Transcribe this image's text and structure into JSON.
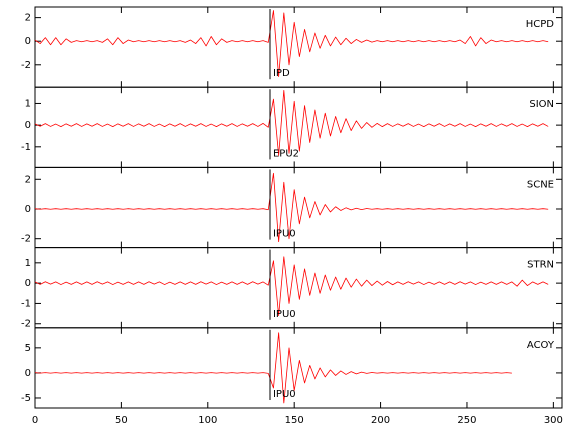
{
  "chart_data": [
    {
      "type": "line",
      "title": "HCPD",
      "pick_label": "IPD",
      "pick_x": 136,
      "color": "#ff0000",
      "ylim": [
        -3.9,
        2.9
      ],
      "yticks": [
        -2,
        0,
        2
      ],
      "x": [
        0,
        3,
        6,
        9,
        12,
        15,
        18,
        21,
        24,
        27,
        30,
        33,
        36,
        39,
        42,
        45,
        48,
        51,
        54,
        57,
        60,
        63,
        66,
        69,
        72,
        75,
        78,
        81,
        84,
        87,
        90,
        93,
        96,
        99,
        102,
        105,
        108,
        111,
        114,
        117,
        120,
        123,
        126,
        129,
        132,
        135,
        138,
        141,
        144,
        147,
        150,
        153,
        156,
        159,
        162,
        165,
        168,
        171,
        174,
        177,
        180,
        183,
        186,
        189,
        192,
        195,
        198,
        201,
        204,
        207,
        210,
        213,
        216,
        219,
        222,
        225,
        228,
        231,
        234,
        237,
        240,
        243,
        246,
        249,
        252,
        255,
        258,
        261,
        264,
        267,
        270,
        273,
        276,
        279,
        282,
        285,
        288,
        291,
        294,
        297
      ],
      "values": [
        0.1,
        -0.2,
        0.3,
        -0.3,
        0.3,
        -0.3,
        0.2,
        -0.1,
        0.05,
        -0.05,
        0.05,
        -0.05,
        0.05,
        -0.1,
        0.2,
        -0.3,
        0.3,
        -0.2,
        0.1,
        -0.05,
        0.05,
        -0.05,
        0.05,
        -0.05,
        0.05,
        -0.05,
        0.05,
        -0.05,
        0.05,
        -0.1,
        0.1,
        -0.2,
        0.3,
        -0.4,
        0.4,
        -0.3,
        0.2,
        -0.1,
        0.05,
        -0.05,
        0.05,
        -0.05,
        0.05,
        -0.05,
        0.05,
        -0.1,
        2.6,
        -3.0,
        2.4,
        -2.0,
        1.6,
        -1.3,
        1.0,
        -0.9,
        0.7,
        -0.6,
        0.5,
        -0.4,
        0.35,
        -0.3,
        0.25,
        -0.2,
        0.15,
        -0.1,
        0.1,
        -0.08,
        0.05,
        -0.05,
        0.05,
        -0.05,
        0.05,
        -0.05,
        0.05,
        -0.05,
        0.05,
        -0.05,
        0.05,
        -0.05,
        0.05,
        -0.05,
        0.05,
        -0.05,
        0.1,
        -0.2,
        0.4,
        -0.4,
        0.3,
        -0.2,
        0.1,
        -0.05,
        0.05,
        -0.05,
        0.05,
        -0.05,
        0.05,
        -0.05,
        0.05,
        -0.05,
        0.05,
        -0.05
      ]
    },
    {
      "type": "line",
      "title": "SION",
      "pick_label": "EPU2",
      "pick_x": 136,
      "color": "#ff0000",
      "ylim": [
        -1.95,
        1.75
      ],
      "yticks": [
        -1,
        0,
        1
      ],
      "x": [
        0,
        3,
        6,
        9,
        12,
        15,
        18,
        21,
        24,
        27,
        30,
        33,
        36,
        39,
        42,
        45,
        48,
        51,
        54,
        57,
        60,
        63,
        66,
        69,
        72,
        75,
        78,
        81,
        84,
        87,
        90,
        93,
        96,
        99,
        102,
        105,
        108,
        111,
        114,
        117,
        120,
        123,
        126,
        129,
        132,
        135,
        138,
        141,
        144,
        147,
        150,
        153,
        156,
        159,
        162,
        165,
        168,
        171,
        174,
        177,
        180,
        183,
        186,
        189,
        192,
        195,
        198,
        201,
        204,
        207,
        210,
        213,
        216,
        219,
        222,
        225,
        228,
        231,
        234,
        237,
        240,
        243,
        246,
        249,
        252,
        255,
        258,
        261,
        264,
        267,
        270,
        273,
        276,
        279,
        282,
        285,
        288,
        291,
        294,
        297
      ],
      "values": [
        0.06,
        -0.05,
        0.07,
        -0.06,
        0.05,
        -0.07,
        0.06,
        -0.05,
        0.07,
        -0.06,
        0.06,
        -0.05,
        0.07,
        -0.06,
        0.05,
        -0.07,
        0.06,
        -0.05,
        0.07,
        -0.06,
        0.06,
        -0.05,
        0.07,
        -0.06,
        0.05,
        -0.07,
        0.06,
        -0.05,
        0.07,
        -0.06,
        0.06,
        -0.05,
        0.07,
        -0.06,
        0.05,
        -0.07,
        0.06,
        -0.05,
        0.07,
        -0.06,
        0.06,
        -0.05,
        0.07,
        -0.06,
        0.08,
        -0.1,
        1.2,
        -1.4,
        1.6,
        -1.3,
        1.1,
        -1.2,
        0.9,
        -0.8,
        0.7,
        -0.6,
        0.55,
        -0.5,
        0.4,
        -0.35,
        0.3,
        -0.25,
        0.2,
        -0.15,
        0.12,
        -0.1,
        0.08,
        -0.07,
        0.07,
        -0.06,
        0.06,
        -0.05,
        0.07,
        -0.06,
        0.05,
        -0.07,
        0.06,
        -0.05,
        0.07,
        -0.06,
        0.06,
        -0.05,
        0.07,
        -0.06,
        0.05,
        -0.07,
        0.06,
        -0.05,
        0.07,
        -0.06,
        0.06,
        -0.05,
        0.07,
        -0.06,
        0.05,
        -0.07,
        0.06,
        -0.05,
        0.07,
        -0.06
      ]
    },
    {
      "type": "line",
      "title": "SCNE",
      "pick_label": "IPU0",
      "pick_x": 136,
      "color": "#ff0000",
      "ylim": [
        -2.6,
        2.8
      ],
      "yticks": [
        -2,
        0,
        2
      ],
      "x": [
        0,
        3,
        6,
        9,
        12,
        15,
        18,
        21,
        24,
        27,
        30,
        33,
        36,
        39,
        42,
        45,
        48,
        51,
        54,
        57,
        60,
        63,
        66,
        69,
        72,
        75,
        78,
        81,
        84,
        87,
        90,
        93,
        96,
        99,
        102,
        105,
        108,
        111,
        114,
        117,
        120,
        123,
        126,
        129,
        132,
        135,
        138,
        141,
        144,
        147,
        150,
        153,
        156,
        159,
        162,
        165,
        168,
        171,
        174,
        177,
        180,
        183,
        186,
        189,
        192,
        195,
        198,
        201,
        204,
        207,
        210,
        213,
        216,
        219,
        222,
        225,
        228,
        231,
        234,
        237,
        240,
        243,
        246,
        249,
        252,
        255,
        258,
        261,
        264,
        267,
        270,
        273,
        276,
        279,
        282,
        285,
        288,
        291,
        294,
        297
      ],
      "values": [
        0.02,
        -0.02,
        0.02,
        -0.02,
        0.02,
        -0.02,
        0.02,
        -0.02,
        0.02,
        -0.02,
        0.02,
        -0.02,
        0.02,
        -0.02,
        0.02,
        -0.02,
        0.02,
        -0.02,
        0.02,
        -0.02,
        0.02,
        -0.02,
        0.02,
        -0.02,
        0.02,
        -0.02,
        0.02,
        -0.02,
        0.02,
        -0.02,
        0.02,
        -0.02,
        0.02,
        -0.02,
        0.02,
        -0.02,
        0.02,
        -0.02,
        0.02,
        -0.02,
        0.02,
        -0.02,
        0.02,
        -0.02,
        0.02,
        -0.05,
        2.4,
        -2.2,
        1.8,
        -2.0,
        1.3,
        -1.0,
        0.8,
        -0.6,
        0.5,
        -0.4,
        0.3,
        -0.2,
        0.15,
        -0.1,
        0.08,
        -0.06,
        0.05,
        -0.04,
        0.03,
        -0.02,
        0.02,
        -0.02,
        0.02,
        -0.02,
        0.02,
        -0.02,
        0.02,
        -0.02,
        0.02,
        -0.02,
        0.02,
        -0.02,
        0.02,
        -0.02,
        0.02,
        -0.02,
        0.02,
        -0.02,
        0.02,
        -0.02,
        0.02,
        -0.02,
        0.02,
        -0.02,
        0.02,
        -0.02,
        0.02,
        -0.02,
        0.02,
        -0.02,
        0.02,
        -0.02,
        0.02,
        -0.02
      ]
    },
    {
      "type": "line",
      "title": "STRN",
      "pick_label": "IPU0",
      "pick_x": 136,
      "color": "#ff0000",
      "ylim": [
        -2.2,
        1.75
      ],
      "yticks": [
        -2,
        -1,
        0,
        1
      ],
      "x": [
        0,
        3,
        6,
        9,
        12,
        15,
        18,
        21,
        24,
        27,
        30,
        33,
        36,
        39,
        42,
        45,
        48,
        51,
        54,
        57,
        60,
        63,
        66,
        69,
        72,
        75,
        78,
        81,
        84,
        87,
        90,
        93,
        96,
        99,
        102,
        105,
        108,
        111,
        114,
        117,
        120,
        123,
        126,
        129,
        132,
        135,
        138,
        141,
        144,
        147,
        150,
        153,
        156,
        159,
        162,
        165,
        168,
        171,
        174,
        177,
        180,
        183,
        186,
        189,
        192,
        195,
        198,
        201,
        204,
        207,
        210,
        213,
        216,
        219,
        222,
        225,
        228,
        231,
        234,
        237,
        240,
        243,
        246,
        249,
        252,
        255,
        258,
        261,
        264,
        267,
        270,
        273,
        276,
        279,
        282,
        285,
        288,
        291,
        294,
        297
      ],
      "values": [
        0.06,
        -0.06,
        0.07,
        -0.05,
        0.06,
        -0.07,
        0.05,
        -0.06,
        0.06,
        -0.06,
        0.06,
        -0.06,
        0.07,
        -0.05,
        0.06,
        -0.07,
        0.05,
        -0.06,
        0.06,
        -0.06,
        0.06,
        -0.06,
        0.07,
        -0.05,
        0.06,
        -0.07,
        0.05,
        -0.06,
        0.06,
        -0.06,
        0.06,
        -0.06,
        0.07,
        -0.05,
        0.06,
        -0.07,
        0.05,
        -0.06,
        0.06,
        -0.06,
        0.06,
        -0.06,
        0.07,
        -0.05,
        0.06,
        -0.1,
        1.1,
        -1.6,
        1.3,
        -1.0,
        0.9,
        -0.8,
        0.7,
        -0.6,
        0.5,
        -0.5,
        0.4,
        -0.35,
        0.3,
        -0.3,
        0.25,
        -0.2,
        0.2,
        -0.15,
        0.15,
        -0.12,
        0.1,
        -0.1,
        0.08,
        -0.08,
        0.06,
        -0.06,
        0.07,
        -0.05,
        0.06,
        -0.07,
        0.05,
        -0.06,
        0.06,
        -0.06,
        0.06,
        -0.06,
        0.07,
        -0.05,
        0.06,
        -0.07,
        0.05,
        -0.06,
        0.06,
        -0.06,
        0.06,
        -0.06,
        0.06,
        -0.15,
        0.15,
        -0.12,
        0.06,
        -0.06,
        0.06,
        -0.06
      ]
    },
    {
      "type": "line",
      "title": "ACOY",
      "pick_label": "IPU0",
      "pick_x": 136,
      "color": "#ff0000",
      "ylim": [
        -7,
        9
      ],
      "yticks": [
        -5,
        0,
        5
      ],
      "xlim": [
        0,
        305
      ],
      "xticks": [
        0,
        50,
        100,
        150,
        200,
        250,
        300
      ],
      "x": [
        0,
        3,
        6,
        9,
        12,
        15,
        18,
        21,
        24,
        27,
        30,
        33,
        36,
        39,
        42,
        45,
        48,
        51,
        54,
        57,
        60,
        63,
        66,
        69,
        72,
        75,
        78,
        81,
        84,
        87,
        90,
        93,
        96,
        99,
        102,
        105,
        108,
        111,
        114,
        117,
        120,
        123,
        126,
        129,
        132,
        135,
        138,
        141,
        144,
        147,
        150,
        153,
        156,
        159,
        162,
        165,
        168,
        171,
        174,
        177,
        180,
        183,
        186,
        189,
        192,
        195,
        198,
        201,
        204,
        207,
        210,
        213,
        216,
        219,
        222,
        225,
        228,
        231,
        234,
        237,
        240,
        243,
        246,
        249,
        252,
        255,
        258,
        261,
        264,
        267,
        270,
        273,
        276
      ],
      "values": [
        0.05,
        -0.05,
        0.05,
        -0.05,
        0.05,
        -0.05,
        0.05,
        -0.05,
        0.05,
        -0.05,
        0.05,
        -0.05,
        0.05,
        -0.05,
        0.05,
        -0.05,
        0.05,
        -0.05,
        0.05,
        -0.05,
        0.05,
        -0.05,
        0.05,
        -0.05,
        0.05,
        -0.05,
        0.05,
        -0.05,
        0.05,
        -0.05,
        0.05,
        -0.05,
        0.05,
        -0.05,
        0.05,
        -0.05,
        0.05,
        -0.05,
        0.05,
        -0.05,
        0.05,
        -0.05,
        0.05,
        -0.05,
        0.05,
        -0.1,
        -3,
        8,
        -6,
        5,
        -3.5,
        2.5,
        -2,
        1.5,
        -1.2,
        1,
        -0.8,
        0.6,
        -0.5,
        0.4,
        -0.3,
        0.25,
        -0.2,
        0.15,
        -0.1,
        0.08,
        -0.05,
        0.05,
        -0.05,
        0.05,
        -0.05,
        0.05,
        -0.05,
        0.05,
        -0.05,
        0.05,
        -0.05,
        0.05,
        -0.05,
        0.05,
        -0.05,
        0.05,
        -0.05,
        0.05,
        -0.05,
        0.05,
        -0.05,
        0.05,
        -0.05,
        0.05,
        -0.05,
        0.05,
        -0.05
      ]
    }
  ]
}
